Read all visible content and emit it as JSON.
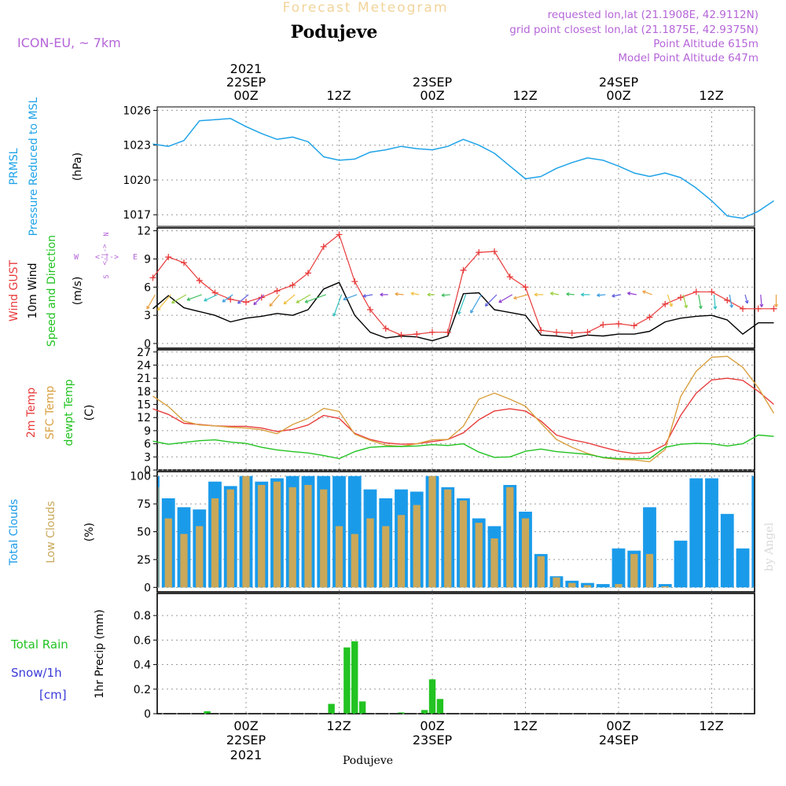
{
  "header": {
    "title": "Forecast Meteogram",
    "location": "Podujeve",
    "model": "ICON-EU, ~ 7km",
    "requested": "requested lon,lat (21.1908E, 42.9112N)",
    "gridpoint": "grid point closest lon,lat (21.1875E, 42.9375N)",
    "point_alt": "Point Altitude 615m",
    "model_alt": "Model Point Altitude 647m",
    "bottom_location": "Podujeve",
    "credit": "by Angel"
  },
  "time_axis": {
    "top_year": "2021",
    "top_dates": [
      "22SEP",
      "23SEP",
      "24SEP"
    ],
    "ticks": [
      "00Z",
      "12Z",
      "00Z",
      "12Z",
      "00Z",
      "12Z"
    ],
    "bottom_dates": [
      "22SEP",
      "23SEP",
      "24SEP"
    ],
    "bottom_year": "2021"
  },
  "colors": {
    "pressure": "#1fa3e8",
    "gust": "#e83b3b",
    "wind": "#000000",
    "t2m": "#e83b3b",
    "sfc": "#d9a040",
    "dew": "#22c322",
    "total_clouds": "#1a9bea",
    "low_clouds": "#c9a85a",
    "rain": "#22c322",
    "snow": "#3a3ad8",
    "purple": "#b565d8"
  },
  "chart_data": [
    {
      "type": "line",
      "ylabel_lines": [
        "PRMSL",
        "Pressure Reduced to MSL"
      ],
      "unit": "(hPa)",
      "yticks": [
        1017,
        1020,
        1023,
        1026
      ],
      "ylim": [
        1016,
        1026.3
      ],
      "hours": [
        -12,
        -10,
        -8,
        -6,
        -4,
        -2,
        0,
        2,
        4,
        6,
        8,
        10,
        12,
        14,
        16,
        18,
        20,
        22,
        24,
        26,
        28,
        30,
        32,
        34,
        36,
        38,
        40,
        42,
        44,
        46,
        48,
        50,
        52,
        54,
        56,
        58,
        60,
        62,
        64,
        66,
        68
      ],
      "series": [
        {
          "values": [
            1023.1,
            1022.9,
            1023.4,
            1025.1,
            1025.2,
            1025.3,
            1024.6,
            1024.0,
            1023.5,
            1023.7,
            1023.3,
            1022.0,
            1021.7,
            1021.8,
            1022.4,
            1022.6,
            1022.9,
            1022.7,
            1022.6,
            1022.9,
            1023.5,
            1023.0,
            1022.3,
            1021.2,
            1020.1,
            1020.3,
            1021.0,
            1021.5,
            1021.9,
            1021.7,
            1021.2,
            1020.6,
            1020.3,
            1020.6,
            1020.2,
            1019.3,
            1018.2,
            1016.9,
            1016.7,
            1017.3,
            1018.2
          ]
        }
      ]
    },
    {
      "type": "line",
      "ylabel_lines": [
        "Wind GUST",
        "10m Wind",
        "Speed and Direction"
      ],
      "unit": "(m/s)",
      "compass": [
        "N",
        "W",
        "E",
        "S"
      ],
      "yticks": [
        0,
        3,
        6,
        9,
        12
      ],
      "ylim": [
        -0.5,
        12.3
      ],
      "hours": [
        -12,
        -10,
        -8,
        -6,
        -4,
        -2,
        0,
        2,
        4,
        6,
        8,
        10,
        12,
        14,
        16,
        18,
        20,
        22,
        24,
        26,
        28,
        30,
        32,
        34,
        36,
        38,
        40,
        42,
        44,
        46,
        48,
        50,
        52,
        54,
        56,
        58,
        60,
        62,
        64,
        66,
        68
      ],
      "series": [
        {
          "name": "gust",
          "values": [
            7.0,
            9.2,
            8.6,
            6.7,
            5.4,
            4.7,
            4.4,
            4.9,
            5.6,
            6.2,
            7.5,
            10.3,
            11.6,
            6.6,
            3.6,
            1.6,
            0.9,
            1.0,
            1.2,
            1.2,
            7.8,
            9.7,
            9.8,
            7.1,
            6.0,
            1.4,
            1.2,
            1.1,
            1.2,
            2.0,
            2.1,
            1.9,
            2.8,
            4.2,
            4.9,
            5.5,
            5.5,
            4.6,
            3.7,
            3.7,
            3.7
          ]
        },
        {
          "name": "wind",
          "values": [
            3.7,
            5.1,
            3.8,
            3.4,
            3.0,
            2.3,
            2.7,
            2.9,
            3.2,
            3.0,
            3.6,
            5.8,
            6.5,
            3.0,
            1.2,
            0.6,
            0.8,
            0.7,
            0.3,
            0.8,
            5.3,
            5.4,
            3.6,
            3.3,
            3.0,
            0.9,
            0.8,
            0.6,
            0.9,
            0.8,
            1.0,
            1.0,
            1.3,
            2.3,
            2.7,
            2.9,
            3.0,
            2.5,
            1.0,
            2.2,
            2.2
          ]
        }
      ]
    },
    {
      "type": "line",
      "ylabel_lines": [
        "2m Temp",
        "SFC Temp",
        "dewpt Temp"
      ],
      "unit": "(C)",
      "yticks": [
        0,
        3,
        6,
        9,
        12,
        15,
        18,
        21,
        24,
        27
      ],
      "ylim": [
        0,
        27.5
      ],
      "hours": [
        -12,
        -10,
        -8,
        -6,
        -4,
        -2,
        0,
        2,
        4,
        6,
        8,
        10,
        12,
        14,
        16,
        18,
        20,
        22,
        24,
        26,
        28,
        30,
        32,
        34,
        36,
        38,
        40,
        42,
        44,
        46,
        48,
        50,
        52,
        54,
        56,
        58,
        60,
        62,
        64,
        66,
        68
      ],
      "series": [
        {
          "name": "t2m",
          "values": [
            14.0,
            12.7,
            10.7,
            10.4,
            10.1,
            10.0,
            10.0,
            9.6,
            8.8,
            9.3,
            10.3,
            12.5,
            11.8,
            8.4,
            7.0,
            6.2,
            5.9,
            6.0,
            6.5,
            7.0,
            8.5,
            11.5,
            13.5,
            14.0,
            13.5,
            11.2,
            8.0,
            6.9,
            6.2,
            5.2,
            4.3,
            3.8,
            4.0,
            5.8,
            12.5,
            17.6,
            20.6,
            21.0,
            20.5,
            18.0,
            15.0
          ]
        },
        {
          "name": "sfc",
          "values": [
            16.9,
            14.5,
            11.2,
            10.3,
            10.1,
            9.8,
            9.6,
            9.2,
            8.3,
            10.4,
            11.8,
            14.1,
            13.4,
            8.2,
            6.8,
            5.7,
            5.4,
            6.0,
            6.9,
            7.0,
            10.0,
            16.2,
            17.6,
            16.2,
            14.6,
            10.7,
            7.0,
            5.2,
            3.8,
            2.8,
            2.4,
            2.3,
            1.9,
            4.7,
            16.8,
            22.6,
            25.8,
            26.0,
            23.5,
            18.8,
            13.0
          ]
        },
        {
          "name": "dew",
          "values": [
            6.6,
            5.9,
            6.3,
            6.7,
            6.9,
            6.4,
            6.1,
            5.2,
            4.6,
            4.2,
            3.9,
            3.3,
            2.6,
            4.2,
            5.2,
            5.4,
            5.4,
            5.5,
            5.8,
            5.6,
            6.0,
            4.1,
            2.9,
            3.0,
            4.3,
            4.8,
            4.2,
            3.9,
            3.6,
            2.9,
            2.6,
            2.6,
            2.6,
            5.2,
            5.9,
            6.1,
            6.0,
            5.5,
            6.0,
            8.0,
            7.7
          ]
        }
      ]
    },
    {
      "type": "bar",
      "ylabel_lines": [
        "Total Clouds",
        "Low Clouds"
      ],
      "unit": "(%)",
      "yticks": [
        0,
        25,
        50,
        75,
        100
      ],
      "ylim": [
        -4,
        104
      ],
      "hours": [
        -12,
        -10,
        -8,
        -6,
        -4,
        -2,
        0,
        2,
        4,
        6,
        8,
        10,
        12,
        14,
        16,
        18,
        20,
        22,
        24,
        26,
        28,
        30,
        32,
        34,
        36,
        38,
        40,
        42,
        44,
        46,
        48,
        50,
        52,
        54,
        56,
        58,
        60,
        62,
        64,
        66,
        68
      ],
      "series": [
        {
          "name": "total",
          "values": [
            100,
            80,
            72,
            70,
            95,
            91,
            100,
            95,
            98,
            100,
            100,
            100,
            100,
            100,
            88,
            80,
            88,
            86,
            100,
            90,
            80,
            62,
            55,
            92,
            68,
            30,
            10,
            6,
            4,
            3,
            35,
            33,
            72,
            3,
            42,
            98,
            98,
            66,
            35,
            100,
            100
          ]
        },
        {
          "name": "low",
          "values": [
            90,
            62,
            48,
            55,
            80,
            88,
            100,
            92,
            95,
            90,
            92,
            88,
            55,
            48,
            62,
            55,
            65,
            74,
            100,
            88,
            78,
            58,
            44,
            90,
            62,
            28,
            9,
            4,
            2,
            0,
            3,
            30,
            30,
            1,
            0,
            0,
            0,
            0,
            0,
            0,
            0
          ]
        }
      ]
    },
    {
      "type": "bar",
      "ylabel_lines": [
        "Total Rain",
        "Snow/1h",
        "[cm]"
      ],
      "unit": "1hr Precip (mm)",
      "yticks": [
        "0",
        "0.2",
        "0.4",
        "0.6",
        "0.8"
      ],
      "ylim": [
        0,
        0.98
      ],
      "bar_hours": [
        -5,
        11,
        13,
        14,
        15,
        16,
        20,
        23,
        24,
        25,
        26
      ],
      "series": [
        {
          "values": [
            0.02,
            0.08,
            0.54,
            0.59,
            0.1,
            0.0,
            0.01,
            0.03,
            0.28,
            0.12,
            0.0
          ]
        }
      ]
    }
  ]
}
